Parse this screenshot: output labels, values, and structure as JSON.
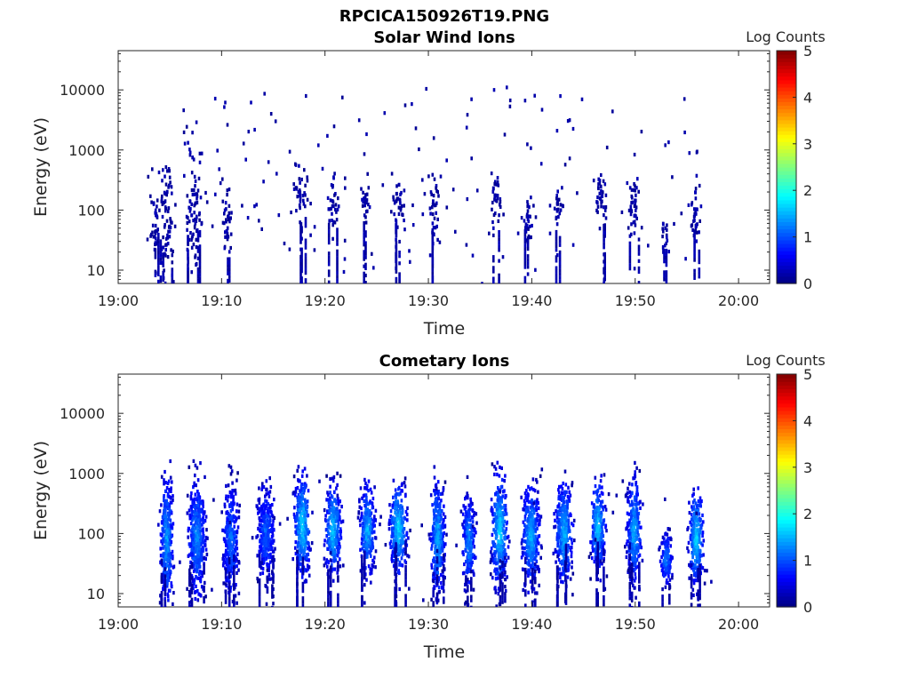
{
  "figure_title": "RPCICA150926T19.PNG",
  "chart_data": [
    {
      "type": "heatmap",
      "title": "Solar Wind Ions",
      "xlabel": "Time",
      "ylabel": "Energy (eV)",
      "x_ticks": [
        "19:00",
        "19:10",
        "19:20",
        "19:30",
        "19:40",
        "19:50",
        "20:00"
      ],
      "x_tick_minutes": [
        0,
        10,
        20,
        30,
        40,
        50,
        60
      ],
      "xlim_minutes": [
        0,
        63
      ],
      "y_scale": "log",
      "ylim": [
        6,
        45000
      ],
      "y_ticks": [
        "10",
        "100",
        "1000",
        "10000"
      ],
      "y_tick_values": [
        10,
        100,
        1000,
        10000
      ],
      "colorbar": {
        "label": "Log Counts",
        "ticks": [
          "0",
          "1",
          "2",
          "3",
          "4",
          "5"
        ],
        "range": [
          0,
          5
        ],
        "colormap": "jet"
      },
      "clusters": [
        {
          "t": 3.5,
          "e": 70,
          "w": 0.8,
          "spread": 0.6,
          "level": 0.15
        },
        {
          "t": 4.6,
          "e": 60,
          "w": 1.0,
          "spread": 1.3,
          "level": 0.2
        },
        {
          "t": 7.2,
          "e": 120,
          "w": 1.2,
          "spread": 1.2,
          "level": 0.2
        },
        {
          "t": 10.4,
          "e": 70,
          "w": 0.7,
          "spread": 0.7,
          "level": 0.2
        },
        {
          "t": 17.5,
          "e": 180,
          "w": 0.9,
          "spread": 0.6,
          "level": 0.25
        },
        {
          "t": 20.7,
          "e": 160,
          "w": 0.8,
          "spread": 0.5,
          "level": 0.25
        },
        {
          "t": 23.8,
          "e": 160,
          "w": 0.6,
          "spread": 0.5,
          "level": 0.25
        },
        {
          "t": 27.0,
          "e": 140,
          "w": 1.0,
          "spread": 0.5,
          "level": 0.25
        },
        {
          "t": 30.5,
          "e": 110,
          "w": 0.7,
          "spread": 0.8,
          "level": 0.2
        },
        {
          "t": 36.5,
          "e": 150,
          "w": 0.8,
          "spread": 0.6,
          "level": 0.25
        },
        {
          "t": 39.5,
          "e": 90,
          "w": 0.6,
          "spread": 0.6,
          "level": 0.2
        },
        {
          "t": 42.5,
          "e": 140,
          "w": 0.6,
          "spread": 0.4,
          "level": 0.2
        },
        {
          "t": 46.5,
          "e": 180,
          "w": 0.8,
          "spread": 0.6,
          "level": 0.25
        },
        {
          "t": 49.8,
          "e": 130,
          "w": 0.8,
          "spread": 0.8,
          "level": 0.25
        },
        {
          "t": 52.8,
          "e": 40,
          "w": 0.5,
          "spread": 0.4,
          "level": 0.25
        },
        {
          "t": 55.7,
          "e": 90,
          "w": 0.7,
          "spread": 0.8,
          "level": 0.3
        }
      ],
      "scatter_t_range": [
        2.5,
        56.5
      ],
      "scatter_e_range": [
        6,
        12000
      ],
      "scatter_count": 170
    },
    {
      "type": "heatmap",
      "title": "Cometary Ions",
      "xlabel": "Time",
      "ylabel": "Energy (eV)",
      "x_ticks": [
        "19:00",
        "19:10",
        "19:20",
        "19:30",
        "19:40",
        "19:50",
        "20:00"
      ],
      "x_tick_minutes": [
        0,
        10,
        20,
        30,
        40,
        50,
        60
      ],
      "xlim_minutes": [
        0,
        63
      ],
      "y_scale": "log",
      "ylim": [
        6,
        45000
      ],
      "y_ticks": [
        "10",
        "100",
        "1000",
        "10000"
      ],
      "y_tick_values": [
        10,
        100,
        1000,
        10000
      ],
      "colorbar": {
        "label": "Log Counts",
        "ticks": [
          "0",
          "1",
          "2",
          "3",
          "4",
          "5"
        ],
        "range": [
          0,
          5
        ],
        "colormap": "jet"
      },
      "clusters": [
        {
          "t": 4.6,
          "e": 80,
          "w": 0.9,
          "spread": 1.3,
          "level": 1.3
        },
        {
          "t": 7.5,
          "e": 90,
          "w": 1.2,
          "spread": 1.2,
          "level": 1.2
        },
        {
          "t": 10.8,
          "e": 80,
          "w": 1.0,
          "spread": 1.1,
          "level": 1.1
        },
        {
          "t": 14.2,
          "e": 110,
          "w": 1.2,
          "spread": 0.9,
          "level": 1.0
        },
        {
          "t": 17.7,
          "e": 140,
          "w": 1.1,
          "spread": 1.0,
          "level": 1.6
        },
        {
          "t": 20.7,
          "e": 120,
          "w": 1.1,
          "spread": 0.9,
          "level": 1.5
        },
        {
          "t": 24.0,
          "e": 120,
          "w": 1.0,
          "spread": 0.9,
          "level": 1.4
        },
        {
          "t": 27.0,
          "e": 130,
          "w": 1.2,
          "spread": 0.9,
          "level": 1.6
        },
        {
          "t": 30.8,
          "e": 90,
          "w": 1.0,
          "spread": 1.1,
          "level": 1.4
        },
        {
          "t": 33.8,
          "e": 80,
          "w": 0.9,
          "spread": 0.9,
          "level": 1.2
        },
        {
          "t": 36.8,
          "e": 120,
          "w": 1.1,
          "spread": 1.1,
          "level": 1.6
        },
        {
          "t": 39.8,
          "e": 100,
          "w": 1.2,
          "spread": 1.0,
          "level": 1.4
        },
        {
          "t": 43.0,
          "e": 110,
          "w": 1.2,
          "spread": 1.0,
          "level": 1.4
        },
        {
          "t": 46.3,
          "e": 140,
          "w": 1.0,
          "spread": 0.9,
          "level": 1.5
        },
        {
          "t": 49.8,
          "e": 120,
          "w": 1.0,
          "spread": 1.0,
          "level": 1.4
        },
        {
          "t": 52.9,
          "e": 40,
          "w": 0.8,
          "spread": 0.5,
          "level": 1.2
        },
        {
          "t": 55.8,
          "e": 90,
          "w": 1.0,
          "spread": 0.9,
          "level": 1.6
        }
      ],
      "scatter_t_range": [
        3.0,
        57.5
      ],
      "scatter_e_range": [
        6,
        1300
      ],
      "scatter_count": 60
    }
  ]
}
